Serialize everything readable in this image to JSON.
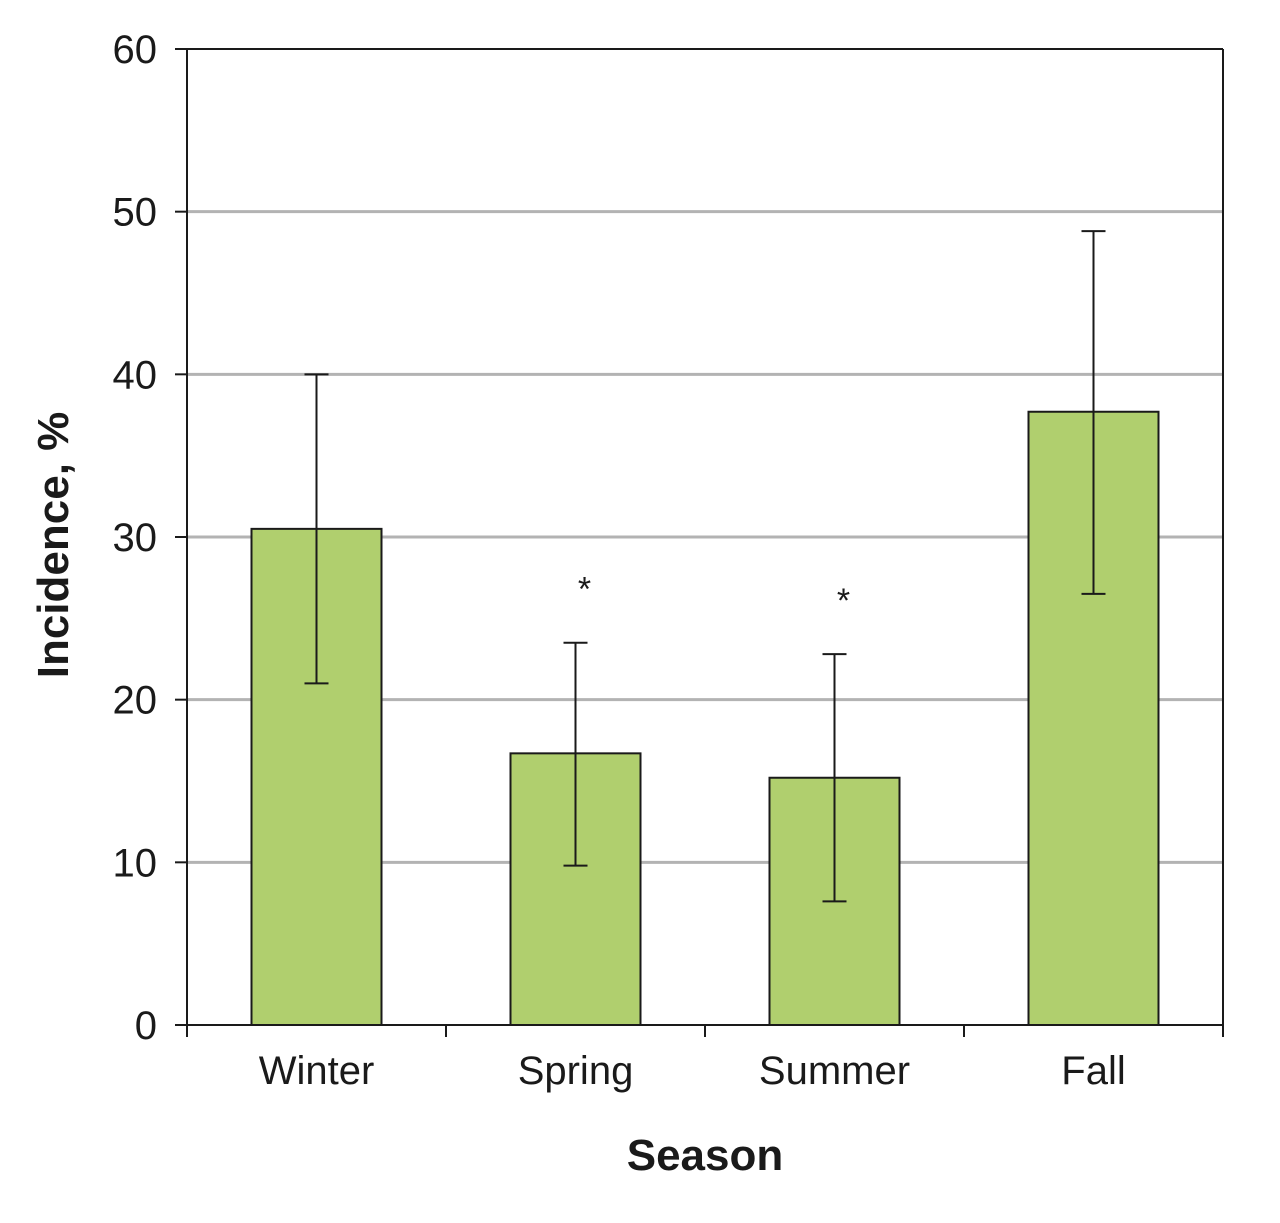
{
  "chart_data": {
    "type": "bar",
    "title": "",
    "xlabel": "Season",
    "ylabel": "Incidence, %",
    "categories": [
      "Winter",
      "Spring",
      "Summer",
      "Fall"
    ],
    "series": [
      {
        "values": [
          30.5,
          16.7,
          15.2,
          37.7
        ],
        "error_low": [
          21.0,
          9.8,
          7.6,
          26.5
        ],
        "error_high": [
          40.0,
          23.5,
          22.8,
          48.8
        ]
      }
    ],
    "significance_marks": [
      "",
      "*",
      "*",
      ""
    ],
    "ylim": [
      0,
      60
    ],
    "yticks": [
      0,
      10,
      20,
      30,
      40,
      50,
      60
    ],
    "grid": true,
    "legend": "none",
    "colors": {
      "bar_fill": "#b0cf6e",
      "bar_stroke": "#1a1a1a",
      "grid": "#b3b3b3",
      "axis": "#1a1a1a"
    }
  }
}
